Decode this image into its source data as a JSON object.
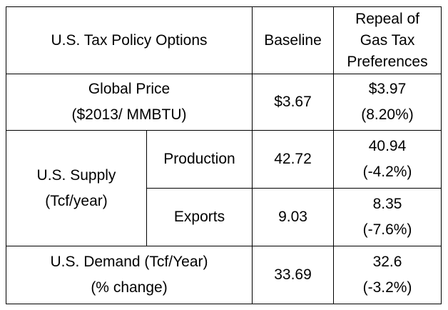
{
  "table": {
    "header": {
      "options": "U.S. Tax Policy Options",
      "baseline": "Baseline",
      "repeal": [
        "Repeal of",
        "Gas Tax",
        "Preferences"
      ]
    },
    "rows": {
      "global_price": {
        "label": [
          "Global Price",
          "($2013/ MMBTU)"
        ],
        "baseline": "$3.67",
        "repeal": [
          "$3.97",
          "(8.20%)"
        ]
      },
      "supply": {
        "label": [
          "U.S. Supply",
          "(Tcf/year)"
        ],
        "production": {
          "label": "Production",
          "baseline": "42.72",
          "repeal": [
            "40.94",
            "(-4.2%)"
          ]
        },
        "exports": {
          "label": "Exports",
          "baseline": "9.03",
          "repeal": [
            "8.35",
            "(-7.6%)"
          ]
        }
      },
      "demand": {
        "label": [
          "U.S. Demand (Tcf/Year)",
          "(% change)"
        ],
        "baseline": "33.69",
        "repeal": [
          "32.6",
          "(-3.2%)"
        ]
      }
    }
  }
}
